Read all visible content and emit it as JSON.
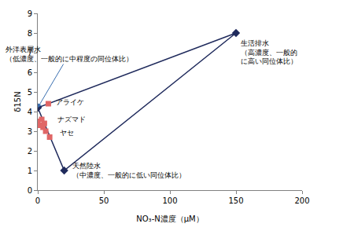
{
  "chart_data": {
    "type": "scatter",
    "x_label": "NO₃-N濃度（μM）",
    "y_label": "δ15N",
    "xlim": [
      0,
      200
    ],
    "xticks": [
      0,
      50,
      100,
      150,
      200
    ],
    "ylim": [
      0,
      9
    ],
    "yticks": [
      0,
      1,
      2,
      3,
      4,
      5,
      6,
      7,
      8,
      9
    ],
    "grid": false,
    "series": [
      {
        "type": "line",
        "color": "#1f2a5c",
        "marker": "diamond",
        "line_style": "solid",
        "x": [
          0,
          150,
          20,
          0
        ],
        "values": [
          4.2,
          8,
          1,
          4.2
        ]
      },
      {
        "type": "scatter",
        "color": "#e06666",
        "marker": "square",
        "line_style": "none",
        "x": [
          8,
          0,
          1,
          3,
          4,
          5,
          6,
          9
        ],
        "values": [
          4.4,
          3.5,
          3.3,
          3.6,
          3.2,
          3.4,
          3.0,
          2.7
        ]
      }
    ],
    "annotations": [
      {
        "text": "外洋表層水\n（低濃度、一般的に中程度の同位体比）",
        "x": 0,
        "y": 4.2
      },
      {
        "text": "生活排水\n（高濃度、一般的\nに高い同位体比）",
        "x": 150,
        "y": 8
      },
      {
        "text": "天然陸水\n（中濃度、一般的に低い同位体比）",
        "x": 20,
        "y": 1
      },
      {
        "text": "アライケ",
        "x": 8,
        "y": 4.4
      },
      {
        "text": "ナズマド",
        "x": 3,
        "y": 3.6
      },
      {
        "text": "ヤセ",
        "x": 6,
        "y": 3.0
      }
    ]
  }
}
